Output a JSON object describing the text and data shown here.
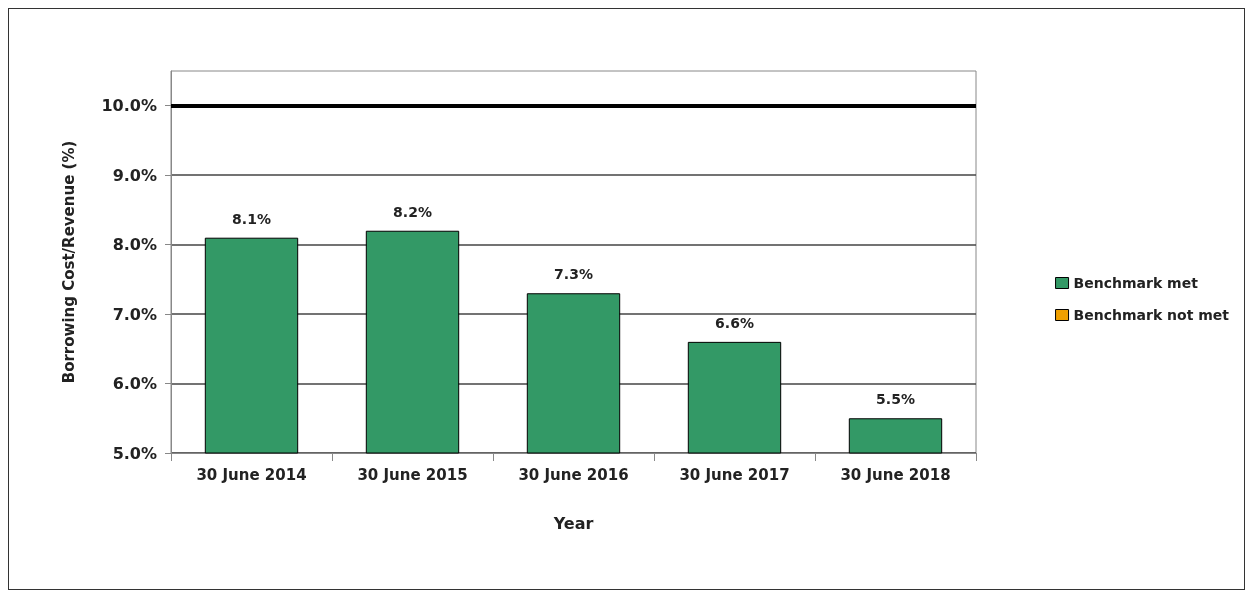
{
  "chart_data": {
    "type": "bar",
    "xlabel": "Year",
    "ylabel": "Borrowing Cost/Revenue (%)",
    "categories": [
      "30 June 2014",
      "30 June 2015",
      "30 June 2016",
      "30 June 2017",
      "30 June 2018"
    ],
    "series": [
      {
        "name": "Benchmark met",
        "color": "#339966",
        "values": [
          8.1,
          8.2,
          7.3,
          6.6,
          5.5
        ],
        "value_labels": [
          "8.1%",
          "8.2%",
          "7.3%",
          "6.6%",
          "5.5%"
        ]
      },
      {
        "name": "Benchmark not met",
        "color": "#f0a000",
        "values": [
          null,
          null,
          null,
          null,
          null
        ]
      }
    ],
    "ylim": [
      5,
      10.5
    ],
    "yticks": [
      {
        "value": 5,
        "label": "5.0%"
      },
      {
        "value": 6,
        "label": "6.0%"
      },
      {
        "value": 7,
        "label": "7.0%"
      },
      {
        "value": 8,
        "label": "8.0%"
      },
      {
        "value": 9,
        "label": "9.0%"
      },
      {
        "value": 10,
        "label": "10.0%"
      }
    ],
    "ref_lines": [
      {
        "axis": "y",
        "value": 10,
        "color": "#000000",
        "line_style": "solid"
      }
    ],
    "grid": "y",
    "legend": "right"
  }
}
